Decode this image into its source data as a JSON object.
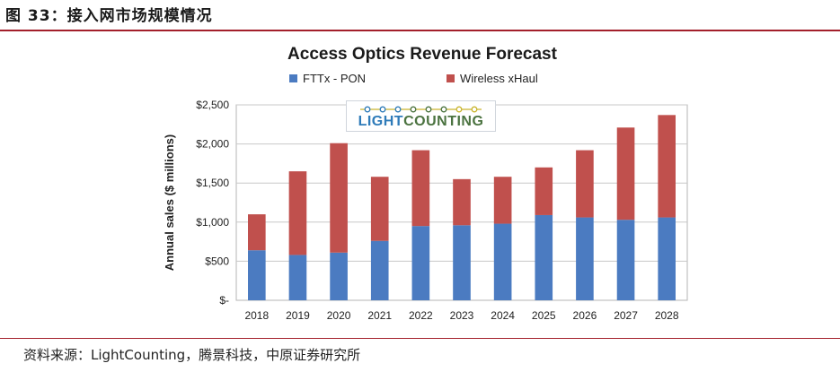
{
  "figure": {
    "title": "图 33：接入网市场规模情况",
    "source": "资料来源：LightCounting，腾景科技，中原证券研究所"
  },
  "logo": {
    "part1": "LIGHT",
    "part2": "COUNTING"
  },
  "colors": {
    "fttx": "#4b7bc1",
    "wireless": "#c0504d",
    "accent_rule": "#a31f2b",
    "grid": "#c8c8c8"
  },
  "chart_data": {
    "type": "bar",
    "stacked": true,
    "title": "Access Optics Revenue Forecast",
    "xlabel": "",
    "ylabel": "Annual sales ($ millions)",
    "ylim": [
      0,
      2500
    ],
    "yticks": [
      0,
      500,
      1000,
      1500,
      2000,
      2500
    ],
    "ytick_labels": [
      "$-",
      "$500",
      "$1,000",
      "$1,500",
      "$2,000",
      "$2,500"
    ],
    "grid": true,
    "legend_position": "top",
    "categories": [
      "2018",
      "2019",
      "2020",
      "2021",
      "2022",
      "2023",
      "2024",
      "2025",
      "2026",
      "2027",
      "2028"
    ],
    "series": [
      {
        "name": "FTTx - PON",
        "color": "#4b7bc1",
        "values": [
          640,
          580,
          610,
          760,
          950,
          960,
          980,
          1090,
          1060,
          1030,
          1060
        ]
      },
      {
        "name": "Wireless xHaul",
        "color": "#c0504d",
        "values": [
          460,
          1070,
          1400,
          820,
          970,
          590,
          600,
          610,
          860,
          1180,
          1310
        ]
      }
    ]
  }
}
